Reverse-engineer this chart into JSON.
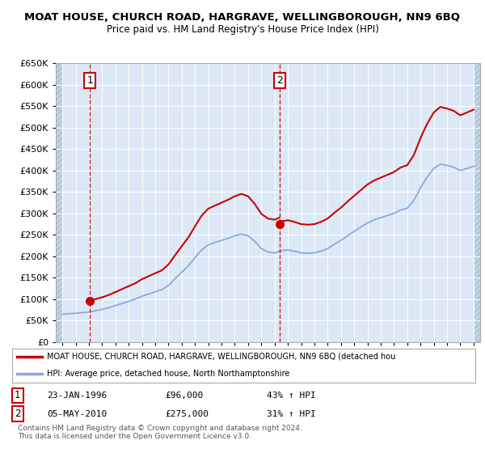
{
  "title": "MOAT HOUSE, CHURCH ROAD, HARGRAVE, WELLINGBOROUGH, NN9 6BQ",
  "subtitle": "Price paid vs. HM Land Registry's House Price Index (HPI)",
  "bg_color": "#dce8f5",
  "legend_line1": "MOAT HOUSE, CHURCH ROAD, HARGRAVE, WELLINGBOROUGH, NN9 6BQ (detached hou",
  "legend_line2": "HPI: Average price, detached house, North Northamptonshire",
  "footer": "Contains HM Land Registry data © Crown copyright and database right 2024.\nThis data is licensed under the Open Government Licence v3.0.",
  "sale1_date": "23-JAN-1996",
  "sale1_price": 96000,
  "sale1_hpi": "43% ↑ HPI",
  "sale2_date": "05-MAY-2010",
  "sale2_price": 275000,
  "sale2_hpi": "31% ↑ HPI",
  "ylim": [
    0,
    650000
  ],
  "yticks": [
    0,
    50000,
    100000,
    150000,
    200000,
    250000,
    300000,
    350000,
    400000,
    450000,
    500000,
    550000,
    600000,
    650000
  ],
  "red_color": "#cc0000",
  "blue_color": "#88aadd",
  "sale1_year": 1996.07,
  "sale2_year": 2010.37,
  "hpi_years": [
    1994,
    1994.5,
    1995,
    1995.5,
    1996,
    1996.5,
    1997,
    1997.5,
    1998,
    1998.5,
    1999,
    1999.5,
    2000,
    2000.5,
    2001,
    2001.5,
    2002,
    2002.5,
    2003,
    2003.5,
    2004,
    2004.5,
    2005,
    2005.5,
    2006,
    2006.5,
    2007,
    2007.5,
    2008,
    2008.5,
    2009,
    2009.5,
    2010,
    2010.5,
    2011,
    2011.5,
    2012,
    2012.5,
    2013,
    2013.5,
    2014,
    2014.5,
    2015,
    2015.5,
    2016,
    2016.5,
    2017,
    2017.5,
    2018,
    2018.5,
    2019,
    2019.5,
    2020,
    2020.5,
    2021,
    2021.5,
    2022,
    2022.5,
    2023,
    2023.5,
    2024,
    2024.5,
    2025
  ],
  "hpi_values": [
    65000,
    66000,
    67000,
    68500,
    70000,
    73000,
    76000,
    80000,
    85000,
    90000,
    95000,
    100000,
    107000,
    112000,
    117000,
    122000,
    132000,
    148000,
    163000,
    178000,
    197000,
    215000,
    227000,
    232000,
    237000,
    242000,
    248000,
    252000,
    248000,
    235000,
    218000,
    210000,
    208000,
    213000,
    215000,
    212000,
    208000,
    207000,
    208000,
    212000,
    218000,
    228000,
    237000,
    248000,
    258000,
    268000,
    278000,
    285000,
    290000,
    295000,
    300000,
    308000,
    312000,
    330000,
    360000,
    385000,
    405000,
    415000,
    412000,
    408000,
    400000,
    405000,
    410000
  ],
  "hpi_at_sale1": 70000,
  "hpi_at_sale2": 208000
}
